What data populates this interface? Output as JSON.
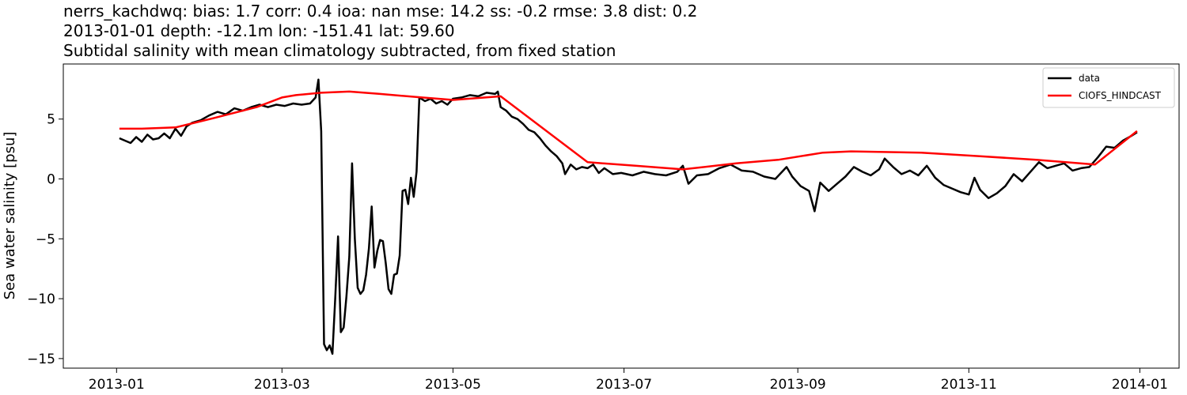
{
  "chart_data": {
    "type": "line",
    "title_lines": [
      "nerrs_kachdwq: bias: 1.7  corr: 0.4  ioa: nan  mse: 14.2  ss: -0.2  rmse: 3.8  dist: 0.2",
      "2013-01-01 depth: -12.1m lon: -151.41 lat: 59.60",
      "Subtidal salinity with mean climatology subtracted, from fixed station"
    ],
    "xlabel": "",
    "ylabel": "Sea water salinity [psu]",
    "x_type": "date",
    "xlim": [
      "2012-12-13",
      "2014-01-15"
    ],
    "ylim": [
      -15.8,
      9.6
    ],
    "x_ticks": [
      "2013-01-01",
      "2013-03-01",
      "2013-05-01",
      "2013-07-01",
      "2013-09-01",
      "2013-11-01",
      "2014-01-01"
    ],
    "x_tick_labels": [
      "2013-01",
      "2013-03",
      "2013-05",
      "2013-07",
      "2013-09",
      "2013-11",
      "2014-01"
    ],
    "y_ticks": [
      5,
      0,
      -5,
      -10,
      -15
    ],
    "y_tick_labels": [
      "5",
      "0",
      "−5",
      "−10",
      "−15"
    ],
    "grid": false,
    "legend_position": "top-right",
    "series": [
      {
        "name": "data",
        "color": "#000000",
        "points": [
          [
            "2013-01-02",
            3.4
          ],
          [
            "2013-01-04",
            3.2
          ],
          [
            "2013-01-06",
            3.0
          ],
          [
            "2013-01-08",
            3.5
          ],
          [
            "2013-01-10",
            3.1
          ],
          [
            "2013-01-12",
            3.7
          ],
          [
            "2013-01-14",
            3.3
          ],
          [
            "2013-01-16",
            3.4
          ],
          [
            "2013-01-18",
            3.8
          ],
          [
            "2013-01-20",
            3.4
          ],
          [
            "2013-01-22",
            4.2
          ],
          [
            "2013-01-24",
            3.6
          ],
          [
            "2013-01-26",
            4.4
          ],
          [
            "2013-01-28",
            4.7
          ],
          [
            "2013-01-31",
            4.9
          ],
          [
            "2013-02-03",
            5.3
          ],
          [
            "2013-02-06",
            5.6
          ],
          [
            "2013-02-09",
            5.4
          ],
          [
            "2013-02-12",
            5.9
          ],
          [
            "2013-02-15",
            5.7
          ],
          [
            "2013-02-18",
            6.0
          ],
          [
            "2013-02-21",
            6.2
          ],
          [
            "2013-02-24",
            6.0
          ],
          [
            "2013-02-27",
            6.2
          ],
          [
            "2013-03-02",
            6.1
          ],
          [
            "2013-03-05",
            6.3
          ],
          [
            "2013-03-08",
            6.2
          ],
          [
            "2013-03-11",
            6.3
          ],
          [
            "2013-03-13",
            6.8
          ],
          [
            "2013-03-14",
            8.3
          ],
          [
            "2013-03-15",
            4.0
          ],
          [
            "2013-03-16",
            -13.8
          ],
          [
            "2013-03-17",
            -14.3
          ],
          [
            "2013-03-18",
            -13.9
          ],
          [
            "2013-03-19",
            -14.6
          ],
          [
            "2013-03-20",
            -10.0
          ],
          [
            "2013-03-21",
            -4.8
          ],
          [
            "2013-03-22",
            -12.8
          ],
          [
            "2013-03-23",
            -12.4
          ],
          [
            "2013-03-24",
            -9.8
          ],
          [
            "2013-03-25",
            -6.5
          ],
          [
            "2013-03-26",
            1.3
          ],
          [
            "2013-03-27",
            -5.0
          ],
          [
            "2013-03-28",
            -9.1
          ],
          [
            "2013-03-29",
            -9.6
          ],
          [
            "2013-03-30",
            -9.3
          ],
          [
            "2013-03-31",
            -8.0
          ],
          [
            "2013-04-01",
            -5.8
          ],
          [
            "2013-04-02",
            -2.3
          ],
          [
            "2013-04-03",
            -7.4
          ],
          [
            "2013-04-04",
            -6.0
          ],
          [
            "2013-04-05",
            -5.1
          ],
          [
            "2013-04-06",
            -5.2
          ],
          [
            "2013-04-07",
            -7.0
          ],
          [
            "2013-04-08",
            -9.2
          ],
          [
            "2013-04-09",
            -9.6
          ],
          [
            "2013-04-10",
            -8.0
          ],
          [
            "2013-04-11",
            -7.9
          ],
          [
            "2013-04-12",
            -6.4
          ],
          [
            "2013-04-13",
            -1.0
          ],
          [
            "2013-04-14",
            -0.9
          ],
          [
            "2013-04-15",
            -2.1
          ],
          [
            "2013-04-16",
            0.1
          ],
          [
            "2013-04-17",
            -1.5
          ],
          [
            "2013-04-18",
            0.6
          ],
          [
            "2013-04-19",
            6.8
          ],
          [
            "2013-04-21",
            6.5
          ],
          [
            "2013-04-23",
            6.7
          ],
          [
            "2013-04-25",
            6.3
          ],
          [
            "2013-04-27",
            6.5
          ],
          [
            "2013-04-29",
            6.2
          ],
          [
            "2013-05-01",
            6.7
          ],
          [
            "2013-05-04",
            6.8
          ],
          [
            "2013-05-07",
            7.0
          ],
          [
            "2013-05-10",
            6.9
          ],
          [
            "2013-05-13",
            7.2
          ],
          [
            "2013-05-16",
            7.1
          ],
          [
            "2013-05-17",
            7.3
          ],
          [
            "2013-05-18",
            6.0
          ],
          [
            "2013-05-20",
            5.7
          ],
          [
            "2013-05-22",
            5.2
          ],
          [
            "2013-05-24",
            5.0
          ],
          [
            "2013-05-26",
            4.6
          ],
          [
            "2013-05-28",
            4.1
          ],
          [
            "2013-05-30",
            3.9
          ],
          [
            "2013-06-01",
            3.4
          ],
          [
            "2013-06-03",
            2.8
          ],
          [
            "2013-06-05",
            2.3
          ],
          [
            "2013-06-07",
            1.9
          ],
          [
            "2013-06-09",
            1.3
          ],
          [
            "2013-06-10",
            0.4
          ],
          [
            "2013-06-12",
            1.2
          ],
          [
            "2013-06-14",
            0.8
          ],
          [
            "2013-06-16",
            1.0
          ],
          [
            "2013-06-18",
            0.9
          ],
          [
            "2013-06-20",
            1.2
          ],
          [
            "2013-06-22",
            0.5
          ],
          [
            "2013-06-24",
            0.9
          ],
          [
            "2013-06-27",
            0.4
          ],
          [
            "2013-06-30",
            0.5
          ],
          [
            "2013-07-04",
            0.3
          ],
          [
            "2013-07-08",
            0.6
          ],
          [
            "2013-07-12",
            0.4
          ],
          [
            "2013-07-16",
            0.3
          ],
          [
            "2013-07-20",
            0.6
          ],
          [
            "2013-07-22",
            1.1
          ],
          [
            "2013-07-24",
            -0.4
          ],
          [
            "2013-07-27",
            0.3
          ],
          [
            "2013-07-31",
            0.4
          ],
          [
            "2013-08-04",
            0.9
          ],
          [
            "2013-08-08",
            1.2
          ],
          [
            "2013-08-12",
            0.7
          ],
          [
            "2013-08-16",
            0.6
          ],
          [
            "2013-08-20",
            0.2
          ],
          [
            "2013-08-24",
            0.0
          ],
          [
            "2013-08-28",
            1.0
          ],
          [
            "2013-08-30",
            0.2
          ],
          [
            "2013-09-02",
            -0.6
          ],
          [
            "2013-09-05",
            -1.0
          ],
          [
            "2013-09-07",
            -2.7
          ],
          [
            "2013-09-09",
            -0.3
          ],
          [
            "2013-09-12",
            -1.0
          ],
          [
            "2013-09-15",
            -0.4
          ],
          [
            "2013-09-18",
            0.2
          ],
          [
            "2013-09-21",
            1.0
          ],
          [
            "2013-09-24",
            0.6
          ],
          [
            "2013-09-27",
            0.3
          ],
          [
            "2013-09-30",
            0.8
          ],
          [
            "2013-10-02",
            1.7
          ],
          [
            "2013-10-05",
            1.0
          ],
          [
            "2013-10-08",
            0.4
          ],
          [
            "2013-10-11",
            0.7
          ],
          [
            "2013-10-14",
            0.3
          ],
          [
            "2013-10-17",
            1.1
          ],
          [
            "2013-10-20",
            0.1
          ],
          [
            "2013-10-23",
            -0.5
          ],
          [
            "2013-10-26",
            -0.8
          ],
          [
            "2013-10-29",
            -1.1
          ],
          [
            "2013-11-01",
            -1.3
          ],
          [
            "2013-11-03",
            0.1
          ],
          [
            "2013-11-05",
            -0.9
          ],
          [
            "2013-11-08",
            -1.6
          ],
          [
            "2013-11-11",
            -1.2
          ],
          [
            "2013-11-14",
            -0.6
          ],
          [
            "2013-11-17",
            0.4
          ],
          [
            "2013-11-20",
            -0.2
          ],
          [
            "2013-11-23",
            0.6
          ],
          [
            "2013-11-26",
            1.4
          ],
          [
            "2013-11-29",
            0.9
          ],
          [
            "2013-12-02",
            1.1
          ],
          [
            "2013-12-05",
            1.3
          ],
          [
            "2013-12-08",
            0.7
          ],
          [
            "2013-12-11",
            0.9
          ],
          [
            "2013-12-14",
            1.0
          ],
          [
            "2013-12-17",
            1.8
          ],
          [
            "2013-12-20",
            2.7
          ],
          [
            "2013-12-23",
            2.6
          ],
          [
            "2013-12-26",
            3.2
          ],
          [
            "2013-12-29",
            3.6
          ],
          [
            "2013-12-31",
            3.9
          ]
        ]
      },
      {
        "name": "CIOFS_HINDCAST",
        "color": "#ff0000",
        "points": [
          [
            "2013-01-02",
            4.2
          ],
          [
            "2013-01-10",
            4.2
          ],
          [
            "2013-01-22",
            4.3
          ],
          [
            "2013-02-05",
            5.1
          ],
          [
            "2013-02-20",
            6.0
          ],
          [
            "2013-03-01",
            6.8
          ],
          [
            "2013-03-06",
            7.0
          ],
          [
            "2013-03-15",
            7.2
          ],
          [
            "2013-03-25",
            7.3
          ],
          [
            "2013-04-05",
            7.1
          ],
          [
            "2013-04-20",
            6.8
          ],
          [
            "2013-05-01",
            6.6
          ],
          [
            "2013-05-18",
            6.9
          ],
          [
            "2013-06-18",
            1.4
          ],
          [
            "2013-07-05",
            1.1
          ],
          [
            "2013-07-22",
            0.8
          ],
          [
            "2013-08-10",
            1.3
          ],
          [
            "2013-08-25",
            1.6
          ],
          [
            "2013-09-10",
            2.2
          ],
          [
            "2013-09-20",
            2.3
          ],
          [
            "2013-10-15",
            2.2
          ],
          [
            "2013-11-05",
            1.9
          ],
          [
            "2013-11-25",
            1.6
          ],
          [
            "2013-12-16",
            1.2
          ],
          [
            "2013-12-31",
            4.0
          ]
        ]
      }
    ]
  }
}
